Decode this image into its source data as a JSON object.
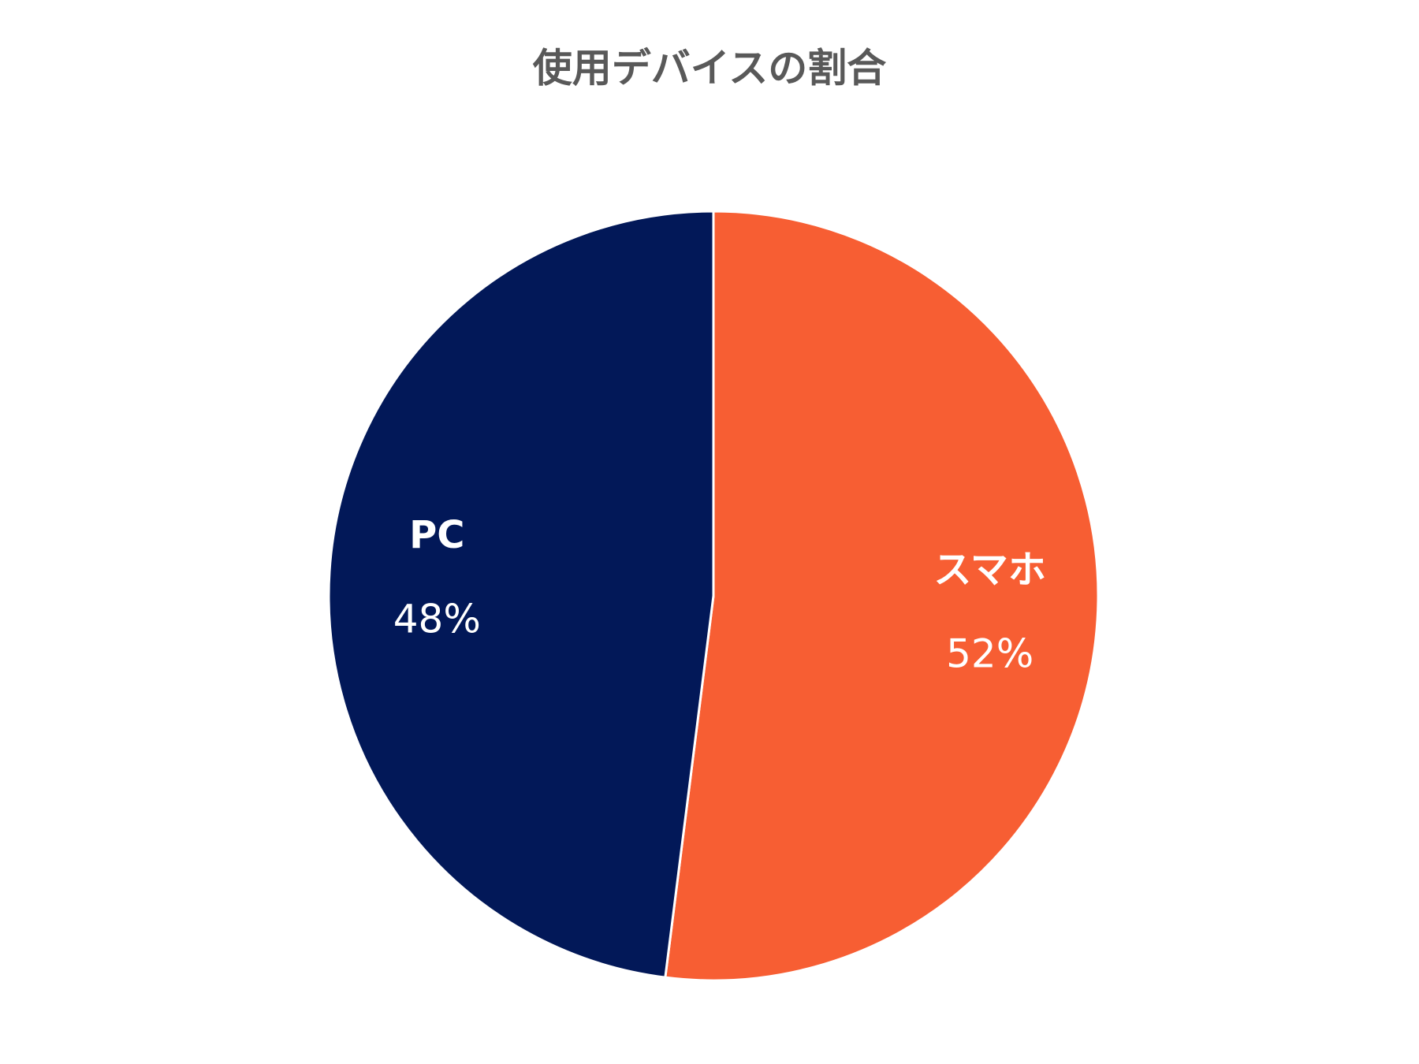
{
  "chart_data": {
    "type": "pie",
    "title": "使用デバイスの割合",
    "categories": [
      "スマホ",
      "PC"
    ],
    "values": [
      52,
      48
    ],
    "value_labels": [
      "52%",
      "48%"
    ],
    "colors": [
      "#f75e33",
      "#021858"
    ]
  }
}
